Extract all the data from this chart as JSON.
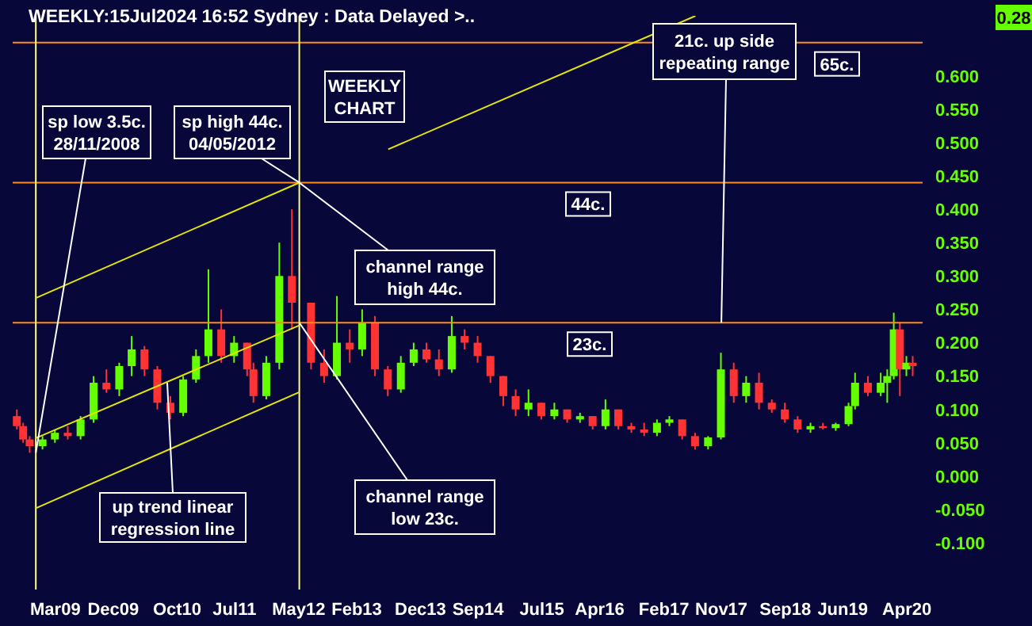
{
  "chart_data": {
    "type": "candlestick",
    "title": "WEEKLY:15Jul2024 16:52 Sydney : Data Delayed >..",
    "x": [
      "2008-09",
      "2008-10",
      "2008-11",
      "2009-01",
      "2009-03",
      "2009-05",
      "2009-07",
      "2009-09",
      "2009-11",
      "2010-01",
      "2010-03",
      "2010-05",
      "2010-07",
      "2010-09",
      "2010-11",
      "2011-01",
      "2011-03",
      "2011-05",
      "2011-07",
      "2011-09",
      "2011-10",
      "2011-12",
      "2012-02",
      "2012-04",
      "2012-07",
      "2012-09",
      "2012-11",
      "2013-01",
      "2013-03",
      "2013-05",
      "2013-07",
      "2013-09",
      "2013-11",
      "2014-01",
      "2014-03",
      "2014-05",
      "2014-07",
      "2014-09",
      "2014-11",
      "2015-01",
      "2015-03",
      "2015-05",
      "2015-07",
      "2015-09",
      "2015-11",
      "2016-01",
      "2016-03",
      "2016-05",
      "2016-07",
      "2016-09",
      "2016-11",
      "2017-01",
      "2017-03",
      "2017-05",
      "2017-07",
      "2017-09",
      "2017-11",
      "2018-01",
      "2018-03",
      "2018-05",
      "2018-07",
      "2018-09",
      "2018-11",
      "2019-01",
      "2019-03",
      "2019-05",
      "2019-07",
      "2019-08",
      "2019-10",
      "2019-12",
      "2020-01",
      "2020-02",
      "2020-03",
      "2020-04",
      "2020-05"
    ],
    "ohlc": [
      [
        0.09,
        0.1,
        0.07,
        0.075
      ],
      [
        0.075,
        0.08,
        0.05,
        0.055
      ],
      [
        0.055,
        0.06,
        0.035,
        0.045
      ],
      [
        0.045,
        0.06,
        0.04,
        0.055
      ],
      [
        0.055,
        0.07,
        0.05,
        0.065
      ],
      [
        0.065,
        0.075,
        0.055,
        0.06
      ],
      [
        0.06,
        0.09,
        0.055,
        0.085
      ],
      [
        0.085,
        0.15,
        0.08,
        0.14
      ],
      [
        0.14,
        0.16,
        0.125,
        0.13
      ],
      [
        0.13,
        0.17,
        0.12,
        0.165
      ],
      [
        0.165,
        0.21,
        0.15,
        0.19
      ],
      [
        0.19,
        0.195,
        0.15,
        0.16
      ],
      [
        0.16,
        0.165,
        0.1,
        0.11
      ],
      [
        0.11,
        0.12,
        0.085,
        0.095
      ],
      [
        0.095,
        0.15,
        0.09,
        0.145
      ],
      [
        0.145,
        0.19,
        0.14,
        0.18
      ],
      [
        0.18,
        0.31,
        0.17,
        0.22
      ],
      [
        0.22,
        0.25,
        0.17,
        0.18
      ],
      [
        0.18,
        0.21,
        0.17,
        0.2
      ],
      [
        0.2,
        0.2,
        0.15,
        0.16
      ],
      [
        0.16,
        0.17,
        0.11,
        0.12
      ],
      [
        0.12,
        0.18,
        0.115,
        0.17
      ],
      [
        0.17,
        0.35,
        0.16,
        0.3
      ],
      [
        0.3,
        0.4,
        0.22,
        0.26
      ],
      [
        0.26,
        0.26,
        0.16,
        0.17
      ],
      [
        0.17,
        0.19,
        0.14,
        0.15
      ],
      [
        0.15,
        0.27,
        0.145,
        0.2
      ],
      [
        0.2,
        0.22,
        0.17,
        0.19
      ],
      [
        0.19,
        0.25,
        0.18,
        0.23
      ],
      [
        0.23,
        0.24,
        0.15,
        0.16
      ],
      [
        0.16,
        0.165,
        0.12,
        0.13
      ],
      [
        0.13,
        0.18,
        0.125,
        0.17
      ],
      [
        0.17,
        0.2,
        0.165,
        0.19
      ],
      [
        0.19,
        0.2,
        0.17,
        0.175
      ],
      [
        0.175,
        0.19,
        0.15,
        0.16
      ],
      [
        0.16,
        0.24,
        0.155,
        0.21
      ],
      [
        0.21,
        0.22,
        0.19,
        0.2
      ],
      [
        0.2,
        0.21,
        0.17,
        0.18
      ],
      [
        0.18,
        0.18,
        0.14,
        0.15
      ],
      [
        0.15,
        0.15,
        0.105,
        0.12
      ],
      [
        0.12,
        0.13,
        0.09,
        0.1
      ],
      [
        0.1,
        0.13,
        0.09,
        0.11
      ],
      [
        0.11,
        0.11,
        0.085,
        0.09
      ],
      [
        0.09,
        0.11,
        0.085,
        0.1
      ],
      [
        0.1,
        0.1,
        0.08,
        0.085
      ],
      [
        0.085,
        0.095,
        0.08,
        0.09
      ],
      [
        0.09,
        0.09,
        0.07,
        0.075
      ],
      [
        0.075,
        0.115,
        0.07,
        0.1
      ],
      [
        0.1,
        0.1,
        0.07,
        0.075
      ],
      [
        0.075,
        0.08,
        0.065,
        0.07
      ],
      [
        0.07,
        0.08,
        0.06,
        0.065
      ],
      [
        0.065,
        0.085,
        0.06,
        0.08
      ],
      [
        0.08,
        0.09,
        0.075,
        0.085
      ],
      [
        0.085,
        0.085,
        0.055,
        0.06
      ],
      [
        0.06,
        0.065,
        0.04,
        0.045
      ],
      [
        0.045,
        0.06,
        0.04,
        0.058
      ],
      [
        0.058,
        0.185,
        0.055,
        0.16
      ],
      [
        0.16,
        0.17,
        0.11,
        0.12
      ],
      [
        0.12,
        0.15,
        0.11,
        0.14
      ],
      [
        0.14,
        0.155,
        0.1,
        0.11
      ],
      [
        0.11,
        0.115,
        0.095,
        0.1
      ],
      [
        0.1,
        0.11,
        0.08,
        0.085
      ],
      [
        0.085,
        0.09,
        0.065,
        0.07
      ],
      [
        0.07,
        0.08,
        0.065,
        0.075
      ],
      [
        0.075,
        0.08,
        0.07,
        0.072
      ],
      [
        0.072,
        0.08,
        0.068,
        0.078
      ],
      [
        0.078,
        0.11,
        0.075,
        0.105
      ],
      [
        0.105,
        0.155,
        0.1,
        0.14
      ],
      [
        0.14,
        0.15,
        0.12,
        0.125
      ],
      [
        0.125,
        0.155,
        0.12,
        0.14
      ],
      [
        0.14,
        0.16,
        0.11,
        0.15
      ],
      [
        0.15,
        0.245,
        0.145,
        0.22
      ],
      [
        0.22,
        0.23,
        0.12,
        0.16
      ],
      [
        0.16,
        0.18,
        0.15,
        0.17
      ],
      [
        0.17,
        0.18,
        0.15,
        0.165
      ]
    ],
    "colors": [
      "#ff3333",
      "#ff3333",
      "#ff3333",
      "#66ff00",
      "#66ff00",
      "#ff3333",
      "#66ff00",
      "#66ff00",
      "#ff3333",
      "#66ff00",
      "#66ff00",
      "#ff3333",
      "#ff3333",
      "#ff3333",
      "#66ff00",
      "#66ff00",
      "#66ff00",
      "#ff3333",
      "#66ff00",
      "#ff3333",
      "#ff3333",
      "#66ff00",
      "#66ff00",
      "#ff3333",
      "#ff3333",
      "#ff3333",
      "#66ff00",
      "#ff3333",
      "#66ff00",
      "#ff3333",
      "#ff3333",
      "#66ff00",
      "#66ff00",
      "#ff3333",
      "#ff3333",
      "#66ff00",
      "#ff3333",
      "#ff3333",
      "#ff3333",
      "#ff3333",
      "#ff3333",
      "#66ff00",
      "#ff3333",
      "#66ff00",
      "#ff3333",
      "#66ff00",
      "#ff3333",
      "#66ff00",
      "#ff3333",
      "#ff3333",
      "#ff3333",
      "#66ff00",
      "#66ff00",
      "#ff3333",
      "#ff3333",
      "#66ff00",
      "#66ff00",
      "#ff3333",
      "#66ff00",
      "#ff3333",
      "#ff3333",
      "#ff3333",
      "#ff3333",
      "#66ff00",
      "#ff3333",
      "#66ff00",
      "#66ff00",
      "#66ff00",
      "#ff3333",
      "#66ff00",
      "#66ff00",
      "#66ff00",
      "#ff3333",
      "#66ff00",
      "#ff3333"
    ],
    "series": [
      {
        "type": "line",
        "color": "#e6e600",
        "x": [
          "2008-11-28",
          "2012-05-04"
        ],
        "values": [
          0.267,
          0.44
        ]
      },
      {
        "type": "line",
        "color": "#e6e600",
        "x": [
          "2008-11-28",
          "2012-05-04"
        ],
        "values": [
          0.057,
          0.226
        ]
      },
      {
        "type": "line",
        "color": "#e6e600",
        "x": [
          "2008-11-28",
          "2012-05-04"
        ],
        "values": [
          -0.048,
          0.126
        ]
      },
      {
        "type": "line",
        "color": "#e6e600",
        "x": [
          "2013-07",
          "2017-07"
        ],
        "values": [
          0.49,
          0.69
        ]
      }
    ],
    "xlim": [
      "2008-08-10",
      "2020-06-15"
    ],
    "xticks": [
      {
        "value": "2009-03",
        "label": "Mar09"
      },
      {
        "value": "2009-12",
        "label": "Dec09"
      },
      {
        "value": "2010-10",
        "label": "Oct10"
      },
      {
        "value": "2011-07",
        "label": "Jul11"
      },
      {
        "value": "2012-05",
        "label": "May12"
      },
      {
        "value": "2013-02",
        "label": "Feb13"
      },
      {
        "value": "2013-12",
        "label": "Dec13"
      },
      {
        "value": "2014-09",
        "label": "Sep14"
      },
      {
        "value": "2015-07",
        "label": "Jul15"
      },
      {
        "value": "2016-04",
        "label": "Apr16"
      },
      {
        "value": "2017-02",
        "label": "Feb17"
      },
      {
        "value": "2017-11",
        "label": "Nov17"
      },
      {
        "value": "2018-09",
        "label": "Sep18"
      },
      {
        "value": "2019-06",
        "label": "Jun19"
      },
      {
        "value": "2020-04",
        "label": "Apr20"
      }
    ],
    "ylim": [
      -0.17,
      0.69
    ],
    "yticks": [
      {
        "value": -0.1,
        "label": "-0.100"
      },
      {
        "value": -0.05,
        "label": "-0.050"
      },
      {
        "value": 0,
        "label": "0.000"
      },
      {
        "value": 0.05,
        "label": "0.050"
      },
      {
        "value": 0.1,
        "label": "0.100"
      },
      {
        "value": 0.15,
        "label": "0.150"
      },
      {
        "value": 0.2,
        "label": "0.200"
      },
      {
        "value": 0.25,
        "label": "0.250"
      },
      {
        "value": 0.3,
        "label": "0.300"
      },
      {
        "value": 0.35,
        "label": "0.350"
      },
      {
        "value": 0.4,
        "label": "0.400"
      },
      {
        "value": 0.45,
        "label": "0.450"
      },
      {
        "value": 0.5,
        "label": "0.500"
      },
      {
        "value": 0.55,
        "label": "0.550"
      },
      {
        "value": 0.6,
        "label": "0.600"
      }
    ],
    "ref_lines": [
      {
        "axis": "y",
        "value": 0.65,
        "label": "65c.",
        "color": "#ff8c1a"
      },
      {
        "axis": "y",
        "value": 0.44,
        "label": "44c.",
        "color": "#ff8c1a"
      },
      {
        "axis": "y",
        "value": 0.23,
        "label": "23c.",
        "color": "#ff8c1a"
      },
      {
        "axis": "x",
        "value": "2008-11-28",
        "color": "#ffff80"
      },
      {
        "axis": "x",
        "value": "2012-05-04",
        "color": "#ffff80"
      }
    ],
    "annotations": [
      "WEEKLY\nCHART",
      {
        "text": "sp low 3.5c.\n28/11/2008",
        "x": "2008-11-28",
        "y": 0.035
      },
      {
        "text": "sp high 44c.\n04/05/2012",
        "x": "2012-05-04",
        "y": 0.44
      },
      {
        "text": "channel range\nhigh 44c.",
        "x": "2012-05-04",
        "y": 0.44
      },
      {
        "text": "channel range\nlow 23c.",
        "x": "2012-05-04",
        "y": 0.23
      },
      {
        "text": "up trend linear\nregression line",
        "x": "2010-08-15",
        "y": 0.14
      },
      {
        "text": "21c. up side\nrepeating range",
        "x": "2017-11",
        "y": 0.23
      },
      "0.28"
    ]
  }
}
